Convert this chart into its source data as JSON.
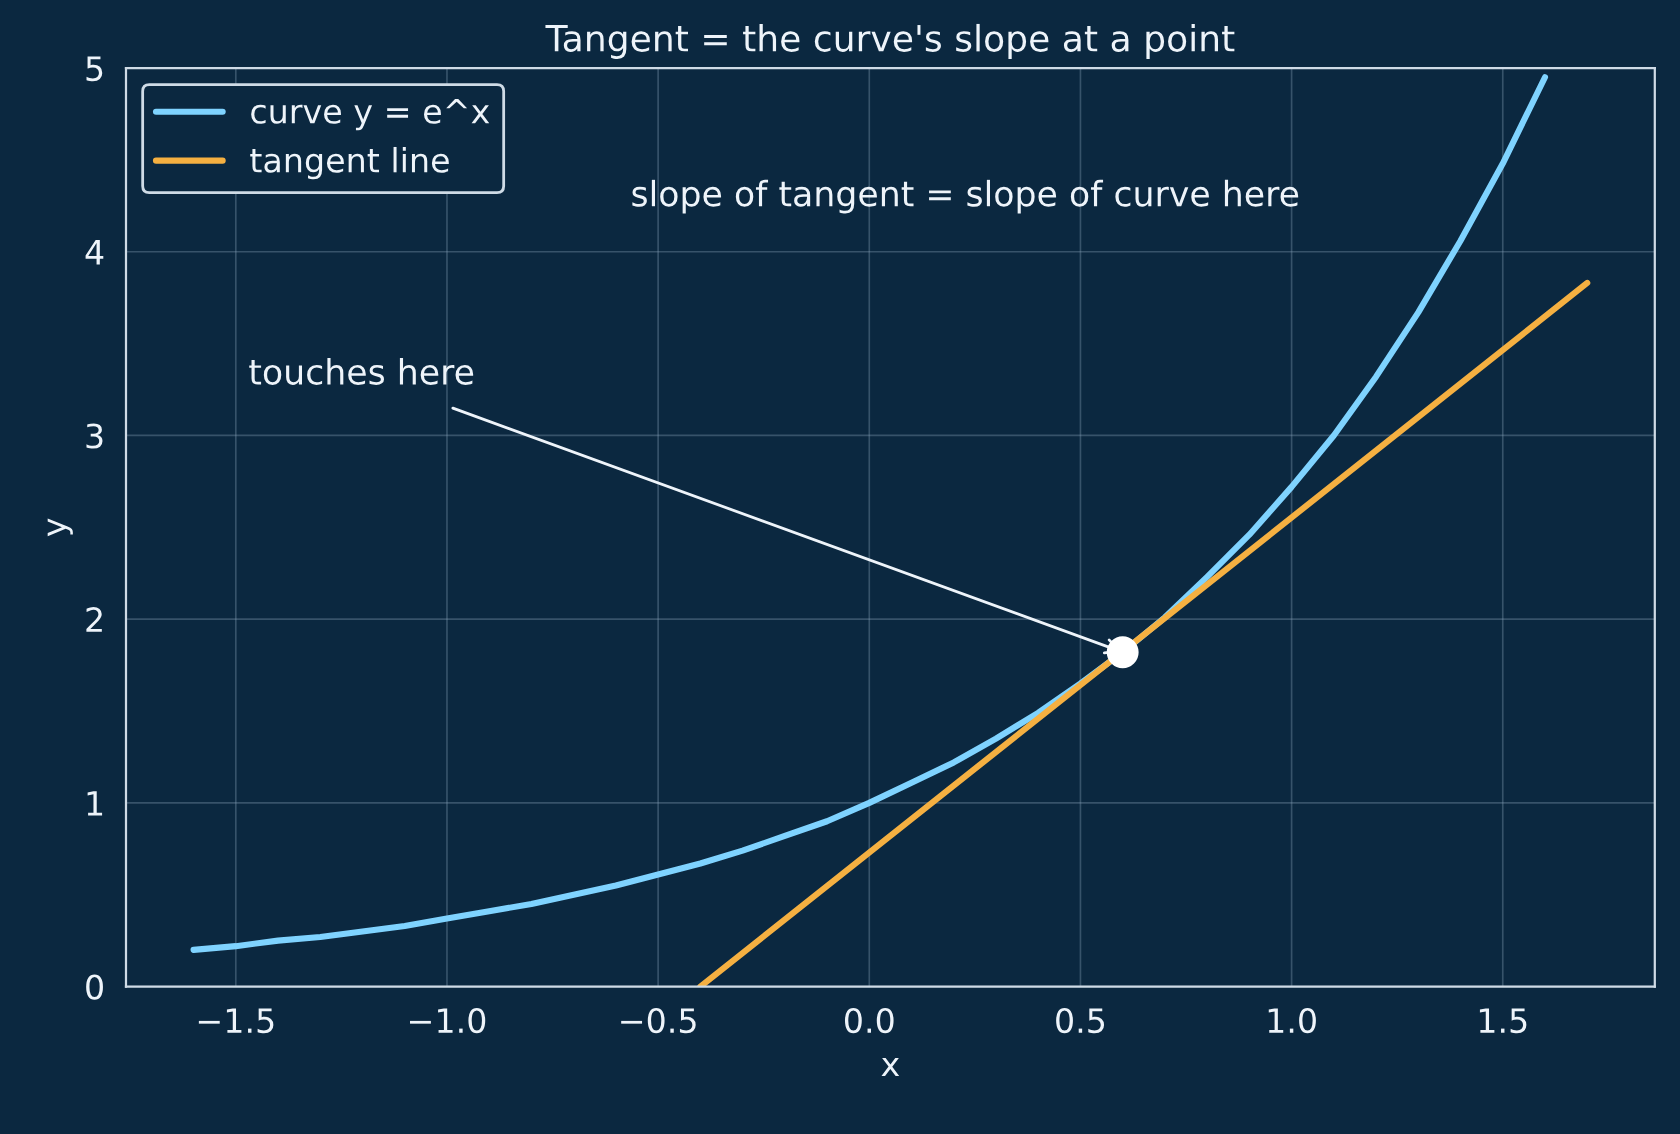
{
  "chart_data": {
    "type": "line",
    "title": "Tangent = the curve's slope at a point",
    "xlabel": "x",
    "ylabel": "y",
    "xlim": [
      -1.76,
      1.86
    ],
    "ylim": [
      0,
      5
    ],
    "xticks": [
      -1.5,
      {
        "value": -1,
        "label": "−1.0"
      },
      -0.5,
      {
        "value": 0,
        "label": "0.0"
      },
      0.5,
      {
        "value": 1,
        "label": "1.0"
      },
      1.5
    ],
    "yticks": [
      0,
      1,
      2,
      3,
      4,
      5
    ],
    "grid": true,
    "legend": "top left",
    "series": [
      {
        "name": "curve y = e^x",
        "color": "#7fd3ff",
        "x": [
          -1.6,
          -1.5,
          -1.4,
          -1.3,
          -1.2,
          -1.1,
          -1.0,
          -0.9,
          -0.8,
          -0.7,
          -0.6,
          -0.5,
          -0.4,
          -0.3,
          -0.2,
          -0.1,
          0.0,
          0.1,
          0.2,
          0.3,
          0.4,
          0.5,
          0.6,
          0.7,
          0.8,
          0.9,
          1.0,
          1.1,
          1.2,
          1.3,
          1.4,
          1.5,
          1.6
        ],
        "values": [
          0.2,
          0.22,
          0.25,
          0.27,
          0.3,
          0.33,
          0.37,
          0.41,
          0.45,
          0.5,
          0.55,
          0.61,
          0.67,
          0.74,
          0.82,
          0.9,
          1.0,
          1.11,
          1.22,
          1.35,
          1.49,
          1.65,
          1.82,
          2.01,
          2.23,
          2.46,
          2.72,
          3.0,
          3.32,
          3.67,
          4.06,
          4.48,
          4.95
        ]
      },
      {
        "name": "tangent line",
        "color": "#f5b041",
        "x": [
          -0.4,
          1.7
        ],
        "values": [
          0,
          3.83
        ]
      },
      {
        "type": "scatter",
        "color": "#ffffff",
        "marker": "circle",
        "x": [
          0.6
        ],
        "values": [
          1.82
        ]
      }
    ],
    "annotations": [
      "slope of tangent = slope of curve here",
      {
        "text": "touches here",
        "x": 0.6,
        "y": 1.82
      }
    ]
  }
}
